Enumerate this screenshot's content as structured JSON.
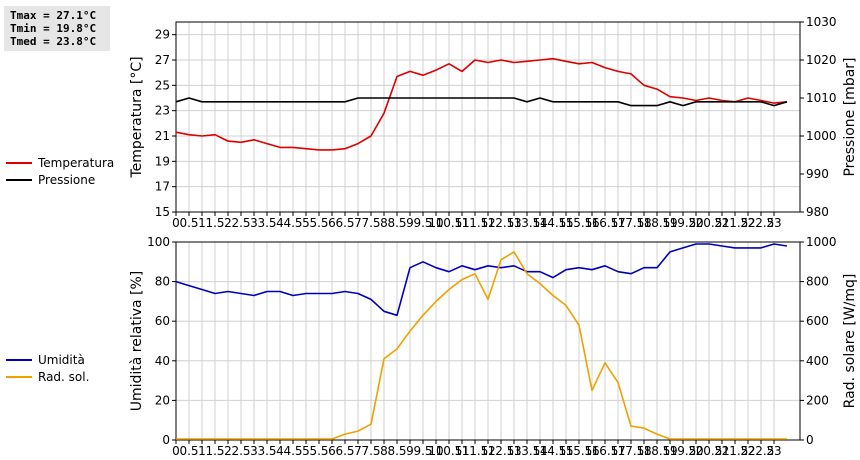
{
  "stats": {
    "tmax": "Tmax = 27.1°C",
    "tmin": "Tmin = 19.8°C",
    "tmed": "Tmed = 23.8°C"
  },
  "legend_top": [
    {
      "label": "Temperatura",
      "color": "#dd0000"
    },
    {
      "label": "Pressione",
      "color": "#000000"
    }
  ],
  "legend_bottom": [
    {
      "label": "Umidità",
      "color": "#0000bb"
    },
    {
      "label": "Rad. sol.",
      "color": "#f0a000"
    }
  ],
  "chart_data": [
    {
      "type": "line",
      "xlim": [
        0,
        24
      ],
      "x_ticks": [
        0,
        0.5,
        1,
        1.5,
        2,
        2.5,
        3,
        3.5,
        4,
        4.5,
        5,
        5.5,
        6,
        6.5,
        7,
        7.5,
        8,
        8.5,
        9,
        9.5,
        10,
        10.5,
        11,
        11.5,
        12,
        12.5,
        13,
        13.5,
        14,
        14.5,
        15,
        15.5,
        16,
        16.5,
        17,
        17.5,
        18,
        18.5,
        19,
        19.5,
        20,
        20.5,
        21,
        21.5,
        22,
        22.5,
        23
      ],
      "ylabel": "Temperatura [°C]",
      "ylim": [
        15,
        30
      ],
      "y_ticks": [
        15,
        17,
        19,
        21,
        23,
        25,
        27,
        29
      ],
      "y2label": "Pressione [mbar]",
      "y2lim": [
        980,
        1030
      ],
      "y2_ticks": [
        980,
        990,
        1000,
        1010,
        1020,
        1030
      ],
      "grid": true,
      "series": [
        {
          "name": "Temperatura",
          "axis": "left",
          "color": "#dd0000",
          "x": [
            0,
            0.5,
            1,
            1.5,
            2,
            2.5,
            3,
            3.5,
            4,
            4.5,
            5,
            5.5,
            6,
            6.5,
            7,
            7.5,
            8,
            8.5,
            9,
            9.5,
            10,
            10.5,
            11,
            11.5,
            12,
            12.5,
            13,
            13.5,
            14,
            14.5,
            15,
            15.5,
            16,
            16.5,
            17,
            17.5,
            18,
            18.5,
            19,
            19.5,
            20,
            20.5,
            21,
            21.5,
            22,
            22.5,
            23,
            23.5
          ],
          "values": [
            21.3,
            21.1,
            21.0,
            21.1,
            20.6,
            20.5,
            20.7,
            20.4,
            20.1,
            20.1,
            20.0,
            19.9,
            19.9,
            20.0,
            20.4,
            21.0,
            22.8,
            25.7,
            26.1,
            25.8,
            26.2,
            26.7,
            26.1,
            27.0,
            26.8,
            27.0,
            26.8,
            26.9,
            27.0,
            27.1,
            26.9,
            26.7,
            26.8,
            26.4,
            26.1,
            25.9,
            25.0,
            24.7,
            24.1,
            24.0,
            23.8,
            24.0,
            23.8,
            23.7,
            24.0,
            23.8,
            23.6,
            23.7
          ]
        },
        {
          "name": "Pressione",
          "axis": "right",
          "color": "#000000",
          "x": [
            0,
            0.5,
            1,
            1.5,
            2,
            2.5,
            3,
            3.5,
            4,
            4.5,
            5,
            5.5,
            6,
            6.5,
            7,
            7.5,
            8,
            8.5,
            9,
            9.5,
            10,
            10.5,
            11,
            11.5,
            12,
            12.5,
            13,
            13.5,
            14,
            14.5,
            15,
            15.5,
            16,
            16.5,
            17,
            17.5,
            18,
            18.5,
            19,
            19.5,
            20,
            20.5,
            21,
            21.5,
            22,
            22.5,
            23,
            23.5
          ],
          "values": [
            1009,
            1010,
            1009,
            1009,
            1009,
            1009,
            1009,
            1009,
            1009,
            1009,
            1009,
            1009,
            1009,
            1009,
            1010,
            1010,
            1010,
            1010,
            1010,
            1010,
            1010,
            1010,
            1010,
            1010,
            1010,
            1010,
            1010,
            1009,
            1010,
            1009,
            1009,
            1009,
            1009,
            1009,
            1009,
            1008,
            1008,
            1008,
            1009,
            1008,
            1009,
            1009,
            1009,
            1009,
            1009,
            1009,
            1008,
            1009
          ]
        }
      ]
    },
    {
      "type": "line",
      "xlim": [
        0,
        24
      ],
      "x_ticks": [
        0,
        0.5,
        1,
        1.5,
        2,
        2.5,
        3,
        3.5,
        4,
        4.5,
        5,
        5.5,
        6,
        6.5,
        7,
        7.5,
        8,
        8.5,
        9,
        9.5,
        10,
        10.5,
        11,
        11.5,
        12,
        12.5,
        13,
        13.5,
        14,
        14.5,
        15,
        15.5,
        16,
        16.5,
        17,
        17.5,
        18,
        18.5,
        19,
        19.5,
        20,
        20.5,
        21,
        21.5,
        22,
        22.5,
        23
      ],
      "ylabel": "Umidità relativa [%]",
      "ylim": [
        0,
        100
      ],
      "y_ticks": [
        0,
        20,
        40,
        60,
        80,
        100
      ],
      "y2label": "Rad. solare [W/mq]",
      "y2lim": [
        0,
        1000
      ],
      "y2_ticks": [
        0,
        200,
        400,
        600,
        800,
        1000
      ],
      "grid": true,
      "series": [
        {
          "name": "Umidità",
          "axis": "left",
          "color": "#0000bb",
          "x": [
            0,
            0.5,
            1,
            1.5,
            2,
            2.5,
            3,
            3.5,
            4,
            4.5,
            5,
            5.5,
            6,
            6.5,
            7,
            7.5,
            8,
            8.5,
            9,
            9.5,
            10,
            10.5,
            11,
            11.5,
            12,
            12.5,
            13,
            13.5,
            14,
            14.5,
            15,
            15.5,
            16,
            16.5,
            17,
            17.5,
            18,
            18.5,
            19,
            19.5,
            20,
            20.5,
            21,
            21.5,
            22,
            22.5,
            23,
            23.5
          ],
          "values": [
            80,
            78,
            76,
            74,
            75,
            74,
            73,
            75,
            75,
            73,
            74,
            74,
            74,
            75,
            74,
            71,
            65,
            63,
            87,
            90,
            87,
            85,
            88,
            86,
            88,
            87,
            88,
            85,
            85,
            82,
            86,
            87,
            86,
            88,
            85,
            84,
            87,
            87,
            95,
            97,
            99,
            99,
            98,
            97,
            97,
            97,
            99,
            98
          ]
        },
        {
          "name": "Rad. sol.",
          "axis": "right",
          "color": "#f0a000",
          "x": [
            0,
            0.5,
            1,
            1.5,
            2,
            2.5,
            3,
            3.5,
            4,
            4.5,
            5,
            5.5,
            6,
            6.5,
            7,
            7.5,
            8,
            8.5,
            9,
            9.5,
            10,
            10.5,
            11,
            11.5,
            12,
            12.5,
            13,
            13.5,
            14,
            14.5,
            15,
            15.5,
            16,
            16.5,
            17,
            17.5,
            18,
            18.5,
            19,
            19.5,
            20,
            20.5,
            21,
            21.5,
            22,
            22.5,
            23,
            23.5
          ],
          "values": [
            5,
            5,
            5,
            5,
            5,
            5,
            5,
            5,
            5,
            5,
            5,
            5,
            5,
            30,
            45,
            80,
            410,
            460,
            550,
            630,
            700,
            760,
            810,
            840,
            710,
            910,
            950,
            840,
            790,
            730,
            680,
            580,
            250,
            390,
            290,
            70,
            60,
            30,
            5,
            5,
            5,
            5,
            5,
            5,
            5,
            5,
            5,
            5
          ]
        }
      ]
    }
  ]
}
